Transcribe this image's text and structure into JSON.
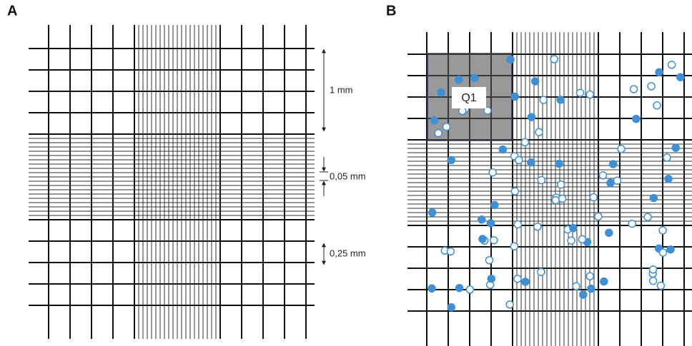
{
  "panel_a": {
    "label": "A",
    "annotations": [
      "1 mm",
      "0,05 mm",
      "0,25 mm"
    ]
  },
  "panel_b": {
    "label": "B",
    "quadrant_label": "Q1"
  }
}
